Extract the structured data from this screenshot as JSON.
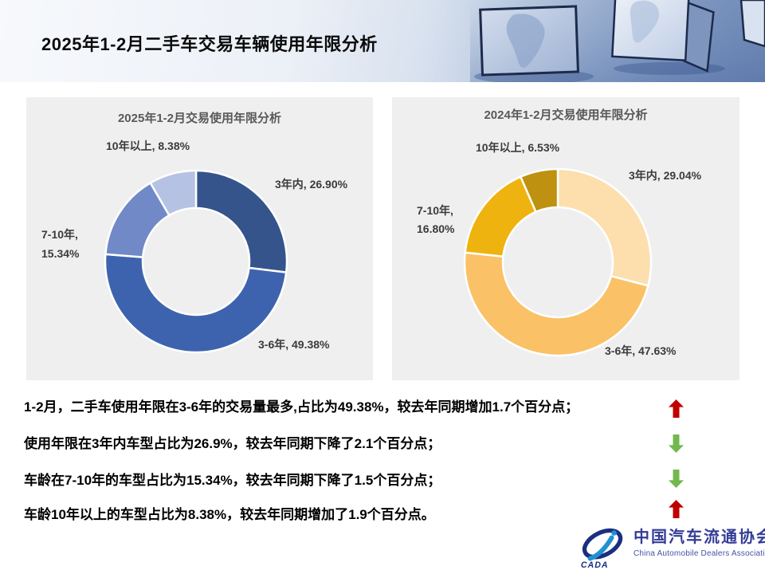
{
  "header": {
    "title": "2025年1-2月二手车交易车辆使用年限分析"
  },
  "chart_data": [
    {
      "type": "pie",
      "subtype": "donut",
      "title": "2025年1-2月交易使用年限分析",
      "unit": "%",
      "slices": [
        {
          "label": "3年内",
          "value": 26.9,
          "color": "#35548C"
        },
        {
          "label": "3-6年",
          "value": 49.38,
          "color": "#3E63AE"
        },
        {
          "label": "7-10年",
          "value": 15.34,
          "color": "#7189C6"
        },
        {
          "label": "10年以上",
          "value": 8.38,
          "color": "#B5C2E3"
        }
      ],
      "callouts": {
        "top": "10年以上, 8.38%",
        "right": "3年内, 26.90%",
        "left_line1": "7-10年,",
        "left_line2": "15.34%",
        "bottom": "3-6年, 49.38%"
      }
    },
    {
      "type": "pie",
      "subtype": "donut",
      "title": "2024年1-2月交易使用年限分析",
      "unit": "%",
      "slices": [
        {
          "label": "3年内",
          "value": 29.04,
          "color": "#FCDFAD"
        },
        {
          "label": "3-6年",
          "value": 47.63,
          "color": "#FAC167"
        },
        {
          "label": "7-10年",
          "value": 16.8,
          "color": "#EFB30F"
        },
        {
          "label": "10年以上",
          "value": 6.53,
          "color": "#BE9110"
        }
      ],
      "callouts": {
        "top": "10年以上, 6.53%",
        "right": "3年内, 29.04%",
        "left_line1": "7-10年,",
        "left_line2": "16.80%",
        "bottom": "3-6年, 47.63%"
      }
    }
  ],
  "summary": {
    "lines": [
      {
        "text": "1-2月，二手车使用年限在3-6年的交易量最多,占比为49.38%，较去年同期增加1.7个百分点；",
        "arrow": "up"
      },
      {
        "text": "使用年限在3年内车型占比为26.9%，较去年同期下降了2.1个百分点；",
        "arrow": "down"
      },
      {
        "text": "车龄在7-10年的车型占比为15.34%，较去年同期下降了1.5个百分点；",
        "arrow": "down"
      },
      {
        "text": "车龄10年以上的车型占比为8.38%，较去年同期增加了1.9个百分点。",
        "arrow": "up"
      }
    ],
    "arrow_up_color": "#C00000",
    "arrow_down_color": "#72B84E"
  },
  "footer": {
    "logo_abbr": "CADA",
    "logo_text_cn": "中国汽车流通协会",
    "logo_text_en": "China Automobile Dealers Association",
    "logo_navy": "#1B2F80",
    "logo_light_blue": "#2191D1"
  }
}
